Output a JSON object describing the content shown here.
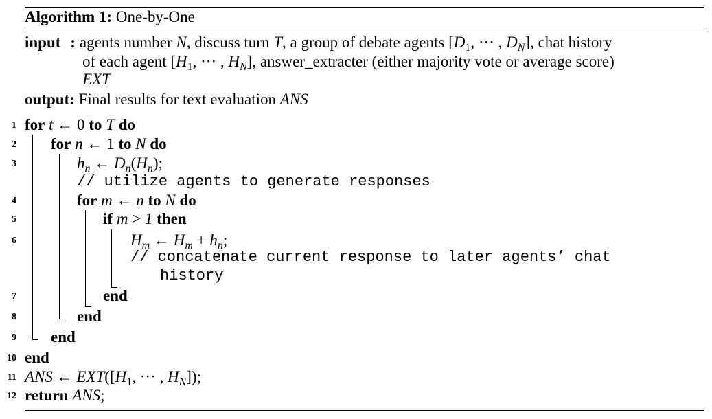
{
  "algorithm": {
    "label": "Algorithm 1:",
    "name": "One-by-One"
  },
  "io": {
    "input_kw": "input",
    "input_sep": ":",
    "input_text_1a": "agents number ",
    "input_text_1b": ", discuss turn ",
    "input_text_1c": ", a group of debate agents ",
    "input_text_1d": ", chat history",
    "input_text_2a": "of each agent ",
    "input_text_2b": ", answer_extracter (either majority vote or average score)",
    "input_text_3": "EXT",
    "output_kw": "output:",
    "output_text": " Final results for text evaluation ",
    "output_var": "ANS",
    "var_N": "N",
    "var_T": "T",
    "agents_list": "[D₁, ··· , D_N]",
    "history_list": "[H₁, ··· , H_N]"
  },
  "lines": [
    {
      "num": "1",
      "text": "for t ← 0 to T do"
    },
    {
      "num": "2",
      "text": "for n ← 1 to N do"
    },
    {
      "num": "3",
      "text": "hn ← Dn(Hn);"
    },
    {
      "num": "",
      "text": "// utilize agents to generate responses"
    },
    {
      "num": "4",
      "text": "for m ← n to N do"
    },
    {
      "num": "5",
      "text": "if m > 1 then"
    },
    {
      "num": "6",
      "text": "Hm ← Hm + hn;"
    },
    {
      "num": "",
      "text": "// concatenate current response to later agents' chat history"
    },
    {
      "num": "7",
      "text": "end"
    },
    {
      "num": "8",
      "text": "end"
    },
    {
      "num": "9",
      "text": "end"
    },
    {
      "num": "10",
      "text": "end"
    },
    {
      "num": "11",
      "text": "ANS ← EXT([H1, ··· , HN]);"
    },
    {
      "num": "12",
      "text": "return ANS;"
    }
  ],
  "keywords": {
    "for": "for",
    "to": "to",
    "do": "do",
    "if": "if",
    "then": "then",
    "end": "end",
    "return": "return"
  },
  "comments": {
    "c1": "// utilize agents to generate responses",
    "c2a": "// concatenate current response to later agents’ chat",
    "c2b": "history"
  }
}
